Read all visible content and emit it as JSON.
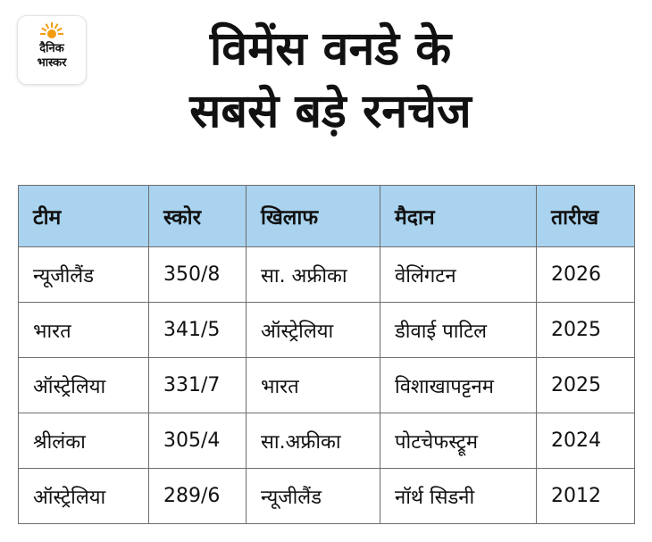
{
  "brand": {
    "logo_text_line1": "दैनिक",
    "logo_text_line2": "भास्कर",
    "sun_color": "#f39c12"
  },
  "headline": {
    "line1": "विमेंस वनडे के",
    "line2": "सबसे बड़े रनचेज"
  },
  "table": {
    "header_color": "#a9d3ee",
    "columns": [
      "टीम",
      "स्कोर",
      "खिलाफ",
      "मैदान",
      "तारीख"
    ],
    "rows": [
      [
        "न्यूजीलैंड",
        "350/8",
        "सा. अफ्रीका",
        "वेलिंगटन",
        "2026"
      ],
      [
        "भारत",
        "341/5",
        "ऑस्ट्रेलिया",
        "डीवाई पाटिल",
        "2025"
      ],
      [
        "ऑस्ट्रेलिया",
        "331/7",
        "भारत",
        "विशाखापट्टनम",
        "2025"
      ],
      [
        "श्रीलंका",
        "305/4",
        "सा.अफ्रीका",
        "पोटचेफस्ट्रूम",
        "2024"
      ],
      [
        "ऑस्ट्रेलिया",
        "289/6",
        "न्यूजीलैंड",
        "नॉर्थ सिडनी",
        "2012"
      ]
    ]
  }
}
